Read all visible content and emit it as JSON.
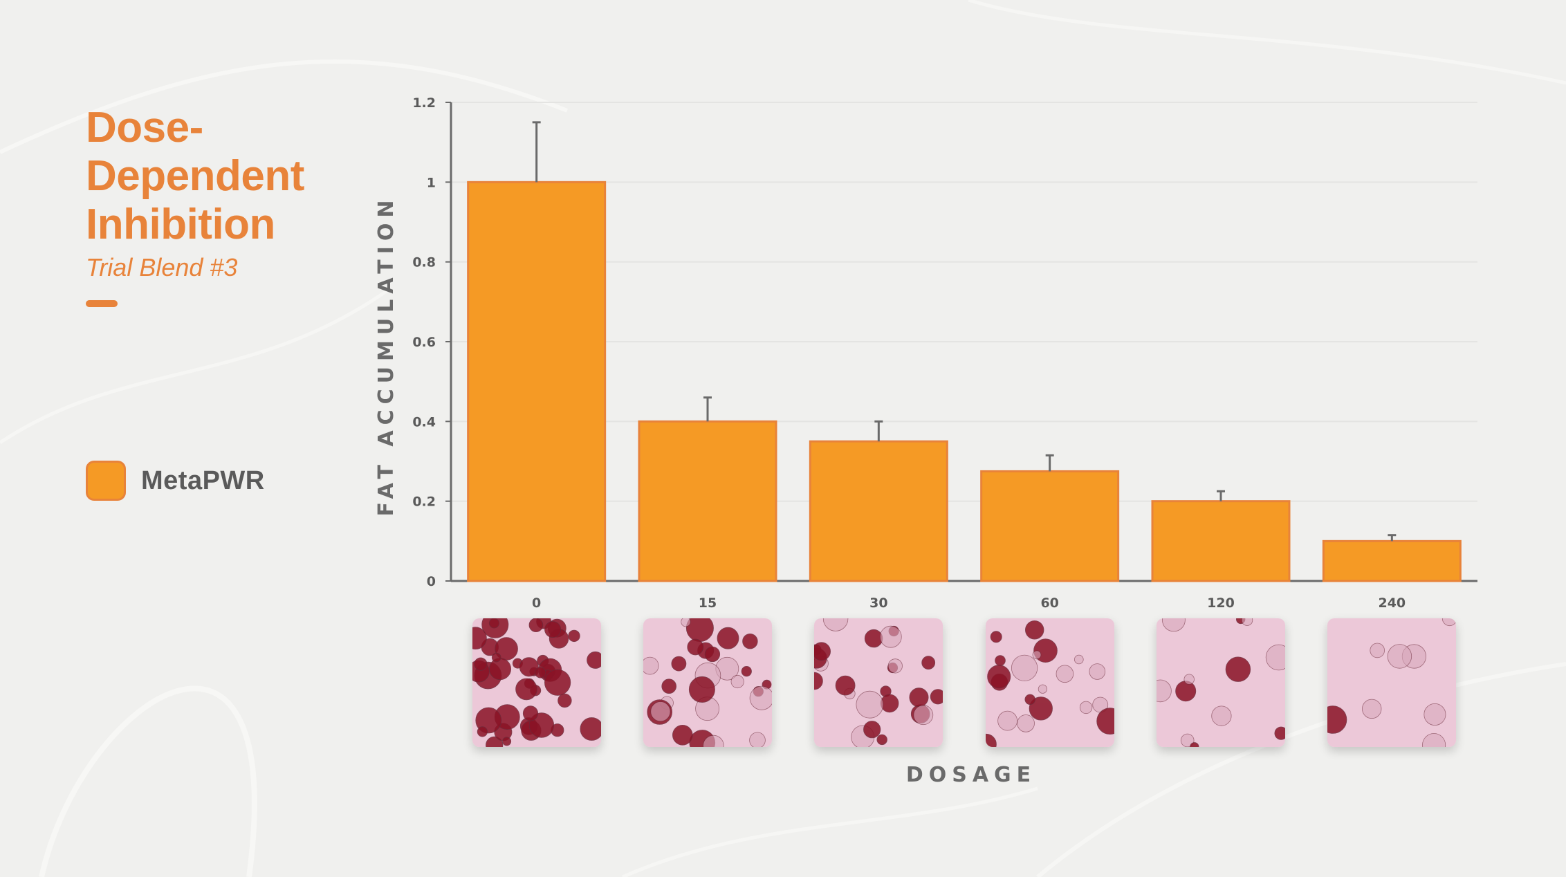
{
  "title": {
    "line1": "Dose-",
    "line2": "Dependent",
    "line3": "Inhibition",
    "subtitle": "Trial Blend #3"
  },
  "legend": {
    "label": "MetaPWR",
    "color": "#f59a25"
  },
  "colors": {
    "accent": "#e8833a",
    "bar_fill": "#f59a25",
    "bar_stroke": "#e8833a",
    "background": "#f0f0ee",
    "axis": "#6a6a6a"
  },
  "chart_data": {
    "type": "bar",
    "title": "",
    "xlabel": "DOSAGE",
    "ylabel": "FAT ACCUMULATION",
    "categories": [
      "0",
      "15",
      "30",
      "60",
      "120",
      "240"
    ],
    "series": [
      {
        "name": "MetaPWR",
        "values": [
          1.0,
          0.4,
          0.35,
          0.275,
          0.2,
          0.1
        ],
        "error": [
          0.15,
          0.06,
          0.05,
          0.04,
          0.025,
          0.015
        ]
      }
    ],
    "ylim": [
      0,
      1.2
    ],
    "yticks": [
      "0",
      "0.2",
      "0.4",
      "0.6",
      "0.8",
      "1",
      "1.2"
    ],
    "grid": true,
    "legend_position": "left"
  },
  "micrographs": [
    {
      "dose": "0",
      "stain_level": 0.9
    },
    {
      "dose": "15",
      "stain_level": 0.5
    },
    {
      "dose": "30",
      "stain_level": 0.45
    },
    {
      "dose": "60",
      "stain_level": 0.35
    },
    {
      "dose": "120",
      "stain_level": 0.15
    },
    {
      "dose": "240",
      "stain_level": 0.06
    }
  ]
}
